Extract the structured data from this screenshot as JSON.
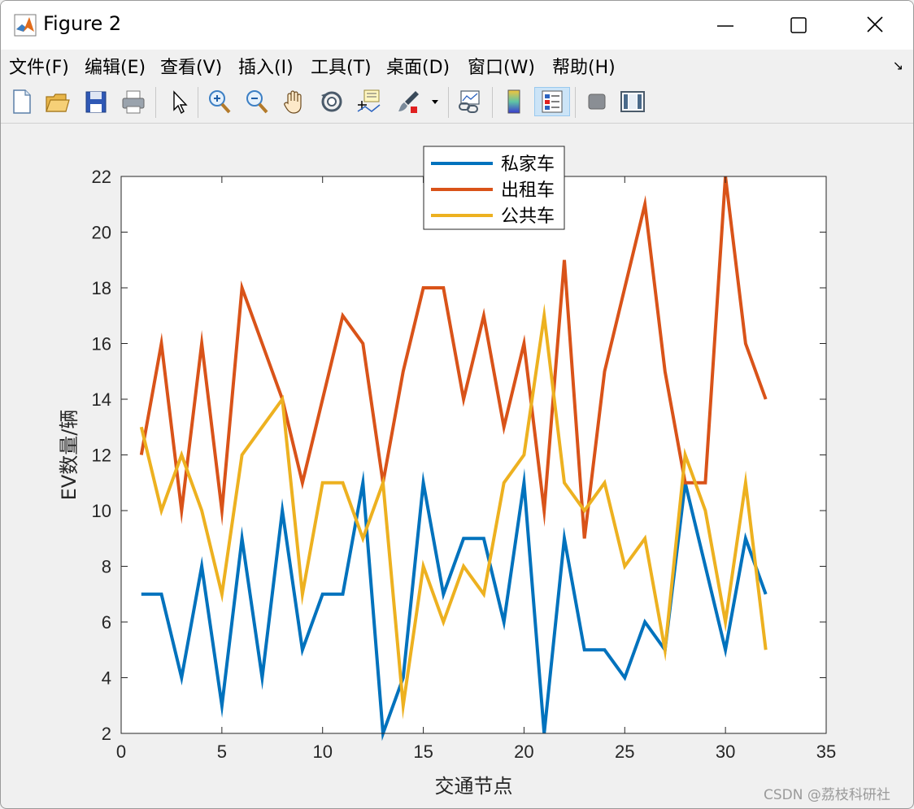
{
  "window": {
    "title": "Figure 2"
  },
  "menu": [
    {
      "label": "文件(F)"
    },
    {
      "label": "编辑(E)"
    },
    {
      "label": "查看(V)"
    },
    {
      "label": "插入(I)"
    },
    {
      "label": "工具(T)"
    },
    {
      "label": "桌面(D)"
    },
    {
      "label": "窗口(W)"
    },
    {
      "label": "帮助(H)"
    }
  ],
  "toolbar": {
    "icons": [
      "new-figure-icon",
      "open-file-icon",
      "save-icon",
      "print-icon",
      "pointer-icon",
      "zoom-in-icon",
      "zoom-out-icon",
      "pan-hand-icon",
      "rotate-3d-icon",
      "data-cursor-icon",
      "brush-icon",
      "link-plot-icon",
      "colorbar-icon",
      "legend-icon",
      "hide-plot-tools-icon",
      "show-plot-tools-icon"
    ]
  },
  "chart_data": {
    "type": "line",
    "title": "",
    "xlabel": "交通节点",
    "ylabel": "EV数量/辆",
    "xlim": [
      0,
      35
    ],
    "ylim": [
      2,
      22
    ],
    "xticks": [
      0,
      5,
      10,
      15,
      20,
      25,
      30,
      35
    ],
    "yticks": [
      2,
      4,
      6,
      8,
      10,
      12,
      14,
      16,
      18,
      20,
      22
    ],
    "grid": false,
    "legend_position": "top-center",
    "x": [
      1,
      2,
      3,
      4,
      5,
      6,
      7,
      8,
      9,
      10,
      11,
      12,
      13,
      14,
      15,
      16,
      17,
      18,
      19,
      20,
      21,
      22,
      23,
      24,
      25,
      26,
      27,
      28,
      29,
      30,
      31,
      32
    ],
    "series": [
      {
        "name": "私家车",
        "color": "#0072BD",
        "values": [
          7,
          7,
          4,
          8,
          3,
          9,
          4,
          10,
          5,
          7,
          7,
          11,
          2,
          4,
          11,
          7,
          9,
          9,
          6,
          11,
          2,
          9,
          5,
          5,
          4,
          6,
          5,
          11,
          8,
          5,
          9,
          7
        ]
      },
      {
        "name": "出租车",
        "color": "#D95319",
        "values": [
          12,
          16,
          10,
          16,
          10,
          18,
          16,
          14,
          11,
          14,
          17,
          16,
          11,
          15,
          18,
          18,
          14,
          17,
          13,
          16,
          10,
          19,
          9,
          15,
          18,
          21,
          15,
          11,
          11,
          22,
          16,
          14
        ]
      },
      {
        "name": "公共车",
        "color": "#EDB120",
        "values": [
          13,
          10,
          12,
          10,
          7,
          12,
          13,
          14,
          7,
          11,
          11,
          9,
          11,
          3,
          8,
          6,
          8,
          7,
          11,
          12,
          17,
          11,
          10,
          11,
          8,
          9,
          5,
          12,
          10,
          6,
          11,
          5
        ]
      }
    ]
  },
  "watermark": "CSDN @荔枝科研社"
}
